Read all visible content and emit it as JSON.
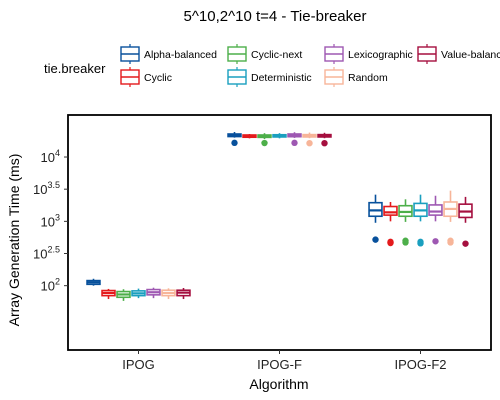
{
  "chart_data": {
    "type": "boxplot",
    "title": "5^10,2^10 t=4 - Tie-breaker",
    "xlabel": "Algorithm",
    "ylabel": "Array Generation Time (ms)",
    "y_scale": "log10",
    "ylim": [
      10,
      45000
    ],
    "y_ticks": [
      {
        "value": 100,
        "base": "10",
        "exp": "2"
      },
      {
        "value": 316.23,
        "base": "10",
        "exp": "2.5"
      },
      {
        "value": 1000,
        "base": "10",
        "exp": "3"
      },
      {
        "value": 3162.28,
        "base": "10",
        "exp": "3.5"
      },
      {
        "value": 10000,
        "base": "10",
        "exp": "4"
      }
    ],
    "categories": [
      "IPOG",
      "IPOG-F",
      "IPOG-F2"
    ],
    "legend_title": "tie.breaker",
    "legend_position": "top",
    "grid": false,
    "series": [
      {
        "name": "Alpha-balanced",
        "color": "#08519c",
        "boxes": [
          {
            "min": 100,
            "q1": 105,
            "median": 113,
            "q3": 120,
            "max": 128,
            "outliers": []
          },
          {
            "min": 20000,
            "q1": 20800,
            "median": 21700,
            "q3": 22800,
            "max": 24500,
            "outliers": [
              16600
            ]
          },
          {
            "min": 950,
            "q1": 1200,
            "median": 1480,
            "q3": 1950,
            "max": 2600,
            "outliers": [
              520
            ]
          }
        ]
      },
      {
        "name": "Cyclic",
        "color": "#e41a1c",
        "boxes": [
          {
            "min": 62,
            "q1": 70,
            "median": 77,
            "q3": 84,
            "max": 89,
            "outliers": []
          },
          {
            "min": 19500,
            "q1": 20300,
            "median": 21200,
            "q3": 22000,
            "max": 22800,
            "outliers": []
          },
          {
            "min": 1000,
            "q1": 1250,
            "median": 1380,
            "q3": 1700,
            "max": 2000,
            "outliers": [
              480,
              460
            ]
          }
        ]
      },
      {
        "name": "Cyclic-next",
        "color": "#4daf4a",
        "boxes": [
          {
            "min": 58,
            "q1": 66,
            "median": 73,
            "q3": 81,
            "max": 88,
            "outliers": []
          },
          {
            "min": 19000,
            "q1": 20200,
            "median": 21000,
            "q3": 22000,
            "max": 23500,
            "outliers": [
              16500
            ]
          },
          {
            "min": 980,
            "q1": 1200,
            "median": 1400,
            "q3": 1750,
            "max": 2200,
            "outliers": [
              500,
              470
            ]
          }
        ]
      },
      {
        "name": "Deterministic",
        "color": "#1a9fbf",
        "boxes": [
          {
            "min": 64,
            "q1": 70,
            "median": 76,
            "q3": 83,
            "max": 90,
            "outliers": []
          },
          {
            "min": 19500,
            "q1": 20500,
            "median": 21300,
            "q3": 22200,
            "max": 23500,
            "outliers": []
          },
          {
            "min": 1000,
            "q1": 1200,
            "median": 1480,
            "q3": 1900,
            "max": 2600,
            "outliers": [
              480,
              455
            ]
          }
        ]
      },
      {
        "name": "Lexicographic",
        "color": "#9e58b2",
        "boxes": [
          {
            "min": 64,
            "q1": 72,
            "median": 79,
            "q3": 87,
            "max": 93,
            "outliers": []
          },
          {
            "min": 19800,
            "q1": 20700,
            "median": 21700,
            "q3": 22800,
            "max": 24300,
            "outliers": [
              16600
            ]
          },
          {
            "min": 1000,
            "q1": 1250,
            "median": 1420,
            "q3": 1800,
            "max": 2500,
            "outliers": [
              490
            ]
          }
        ]
      },
      {
        "name": "Random",
        "color": "#f7b599",
        "boxes": [
          {
            "min": 62,
            "q1": 70,
            "median": 77,
            "q3": 85,
            "max": 91,
            "outliers": []
          },
          {
            "min": 19600,
            "q1": 20500,
            "median": 21300,
            "q3": 22300,
            "max": 24000,
            "outliers": [
              16400
            ]
          },
          {
            "min": 980,
            "q1": 1200,
            "median": 1560,
            "q3": 2000,
            "max": 3000,
            "outliers": [
              500,
              470
            ]
          }
        ]
      },
      {
        "name": "Value-balanced",
        "color": "#a50f3f",
        "boxes": [
          {
            "min": 62,
            "q1": 70,
            "median": 78,
            "q3": 85,
            "max": 92,
            "outliers": []
          },
          {
            "min": 19600,
            "q1": 20500,
            "median": 21400,
            "q3": 22300,
            "max": 23800,
            "outliers": [
              16400
            ]
          },
          {
            "min": 950,
            "q1": 1150,
            "median": 1420,
            "q3": 1850,
            "max": 2400,
            "outliers": [
              450
            ]
          }
        ]
      }
    ]
  }
}
